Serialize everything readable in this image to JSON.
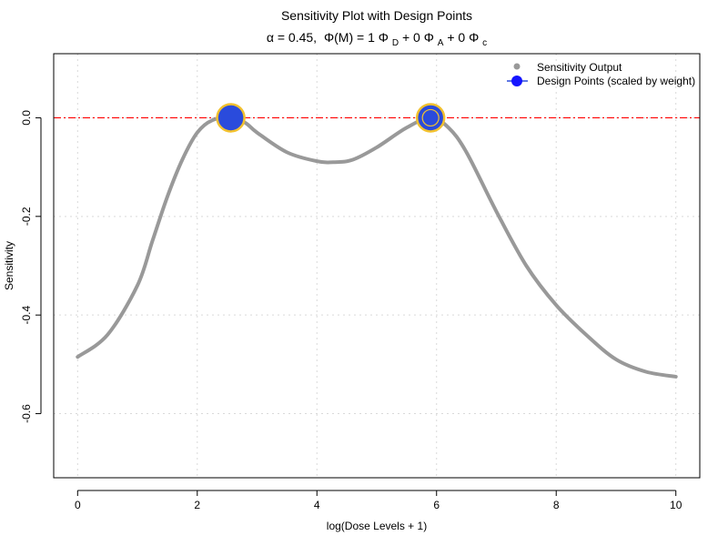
{
  "chart_data": {
    "type": "line",
    "title": "Sensitivity Plot with Design Points",
    "subtitle": {
      "alpha_label": "α = 0.45,",
      "phi_m": "Φ(M) = 1",
      "phi_d": "Φ",
      "sub_d": "D",
      "plus1": " + 0",
      "phi_a": "Φ",
      "sub_a": "A",
      "plus2": " + 0",
      "phi_c": "Φ",
      "sub_c": "c"
    },
    "xlabel": "log(Dose Levels + 1)",
    "ylabel": "Sensitivity",
    "xlim": [
      -0.4,
      10.4
    ],
    "ylim": [
      -0.73,
      0.13
    ],
    "x_ticks": [
      0,
      2,
      4,
      6,
      8,
      10
    ],
    "x_tick_labels": [
      "0",
      "2",
      "4",
      "6",
      "8",
      "10"
    ],
    "y_ticks": [
      0.0,
      -0.2,
      -0.4,
      -0.6
    ],
    "y_tick_labels": [
      "0.0",
      "-0.2",
      "-0.4",
      "-0.6"
    ],
    "grid": true,
    "legend": {
      "position": "top-right",
      "entries": [
        "Sensitivity Output",
        "Design Points (scaled by weight)"
      ]
    },
    "reference_line": {
      "y": 0,
      "color": "#ff0000",
      "style": "dash-dot"
    },
    "series": [
      {
        "name": "Sensitivity Output",
        "color": "#999999",
        "x": [
          0,
          0.5,
          1.0,
          1.25,
          1.5,
          1.75,
          2.0,
          2.25,
          2.56,
          2.8,
          3.0,
          3.5,
          4.0,
          4.3,
          4.6,
          5.0,
          5.5,
          5.9,
          6.2,
          6.5,
          7.0,
          7.5,
          8.0,
          8.5,
          9.0,
          9.5,
          10.0
        ],
        "y": [
          -0.485,
          -0.44,
          -0.34,
          -0.25,
          -0.16,
          -0.085,
          -0.03,
          -0.005,
          0.0,
          -0.01,
          -0.03,
          -0.07,
          -0.088,
          -0.09,
          -0.085,
          -0.06,
          -0.02,
          0.0,
          -0.02,
          -0.07,
          -0.19,
          -0.3,
          -0.38,
          -0.44,
          -0.49,
          -0.515,
          -0.525
        ]
      },
      {
        "name": "Design Points (scaled by weight)",
        "type": "scatter",
        "color": "#2a4bdc",
        "edge_color": "#f2c12e",
        "x": [
          2.56,
          5.9
        ],
        "y": [
          0.0,
          0.0
        ]
      }
    ]
  }
}
